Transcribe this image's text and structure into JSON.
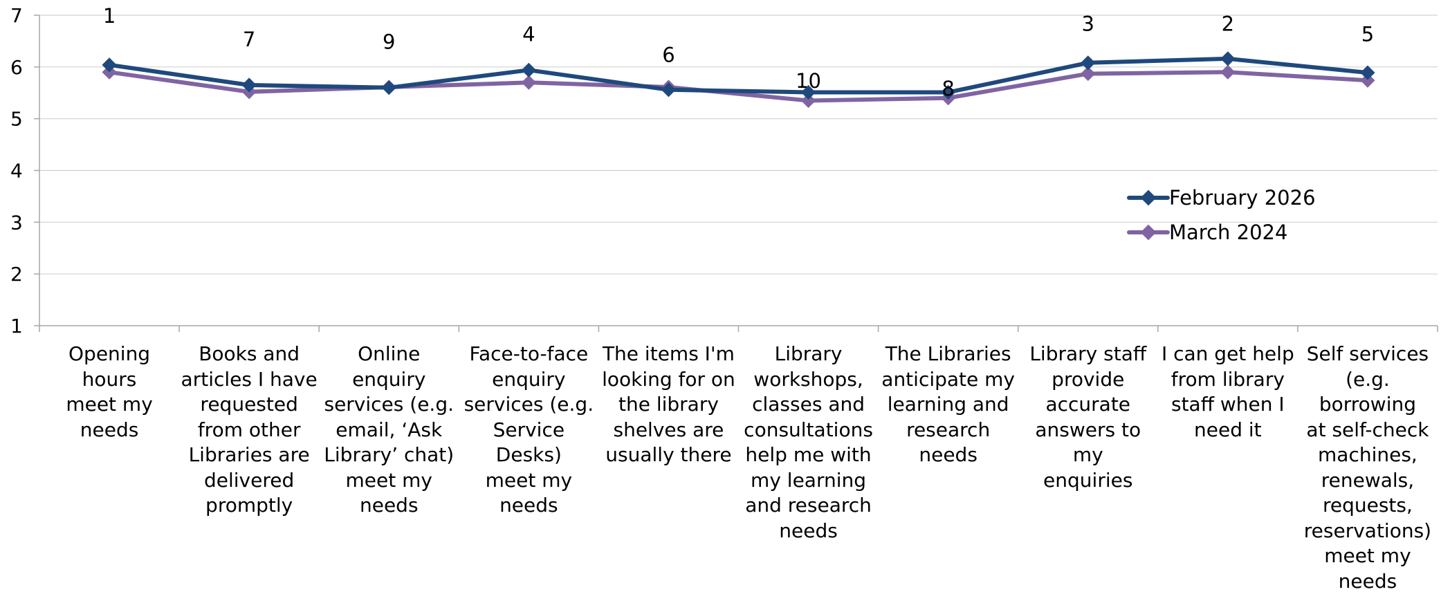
{
  "chart_data": {
    "type": "line",
    "categories": [
      "Opening hours meet my needs",
      "Books and articles I have requested from other Libraries are delivered promptly",
      "Online enquiry services (e.g. email, ‘Ask Library’ chat) meet my needs",
      "Face-to-face enquiry services (e.g. Service Desks) meet my needs",
      "The items I'm looking for on the library shelves are usually there",
      "Library workshops, classes and consultations help me with my learning and research needs",
      "The Libraries anticipate my learning and research needs",
      "Library staff provide accurate answers to my enquiries",
      "I can get help from library staff when I need it",
      "Self services (e.g. borrowing at self-check machines, renewals, requests, reservations) meet my needs"
    ],
    "category_lines": [
      [
        "Opening hours",
        "meet my",
        "needs"
      ],
      [
        "Books and",
        "articles I have",
        "requested",
        "from other",
        "Libraries are",
        "delivered",
        "promptly"
      ],
      [
        "Online enquiry",
        "services (e.g.",
        "email, ‘Ask",
        "Library’ chat)",
        "meet my",
        "needs"
      ],
      [
        "Face-to-face",
        "enquiry",
        "services (e.g.",
        "Service Desks)",
        "meet my",
        "needs"
      ],
      [
        "The items I'm",
        "looking for on",
        "the library",
        "shelves are",
        "usually there"
      ],
      [
        "Library",
        "workshops,",
        "classes and",
        "consultations",
        "help me with",
        "my learning",
        "and research",
        "needs"
      ],
      [
        "The Libraries",
        "anticipate my",
        "learning and",
        "research",
        "needs"
      ],
      [
        "Library staff",
        "provide",
        "accurate",
        "answers to my",
        "enquiries"
      ],
      [
        "I can get help",
        "from library",
        "staff when I",
        "need it"
      ],
      [
        "Self services",
        "(e.g. borrowing",
        "at self-check",
        "machines,",
        "renewals,",
        "requests,",
        "reservations)",
        "meet my",
        "needs"
      ]
    ],
    "series": [
      {
        "name": "February 2026",
        "color": "#1f497d",
        "values": [
          6.04,
          5.65,
          5.6,
          5.94,
          5.56,
          5.51,
          5.51,
          6.08,
          6.16,
          5.89
        ]
      },
      {
        "name": "March 2024",
        "color": "#8064a2",
        "values": [
          5.9,
          5.52,
          5.61,
          5.7,
          5.61,
          5.35,
          5.4,
          5.87,
          5.9,
          5.74
        ]
      }
    ],
    "rank_labels": [
      "1",
      "7",
      "9",
      "4",
      "6",
      "10",
      "8",
      "3",
      "2",
      "5"
    ],
    "rank_label_values": [
      6.85,
      6.4,
      6.35,
      6.5,
      6.1,
      5.6,
      5.45,
      6.7,
      6.7,
      6.5
    ],
    "ylim": [
      1,
      7
    ],
    "yticks": [
      "1",
      "2",
      "3",
      "4",
      "5",
      "6",
      "7"
    ],
    "grid": true,
    "legend_position": "right, middle"
  }
}
